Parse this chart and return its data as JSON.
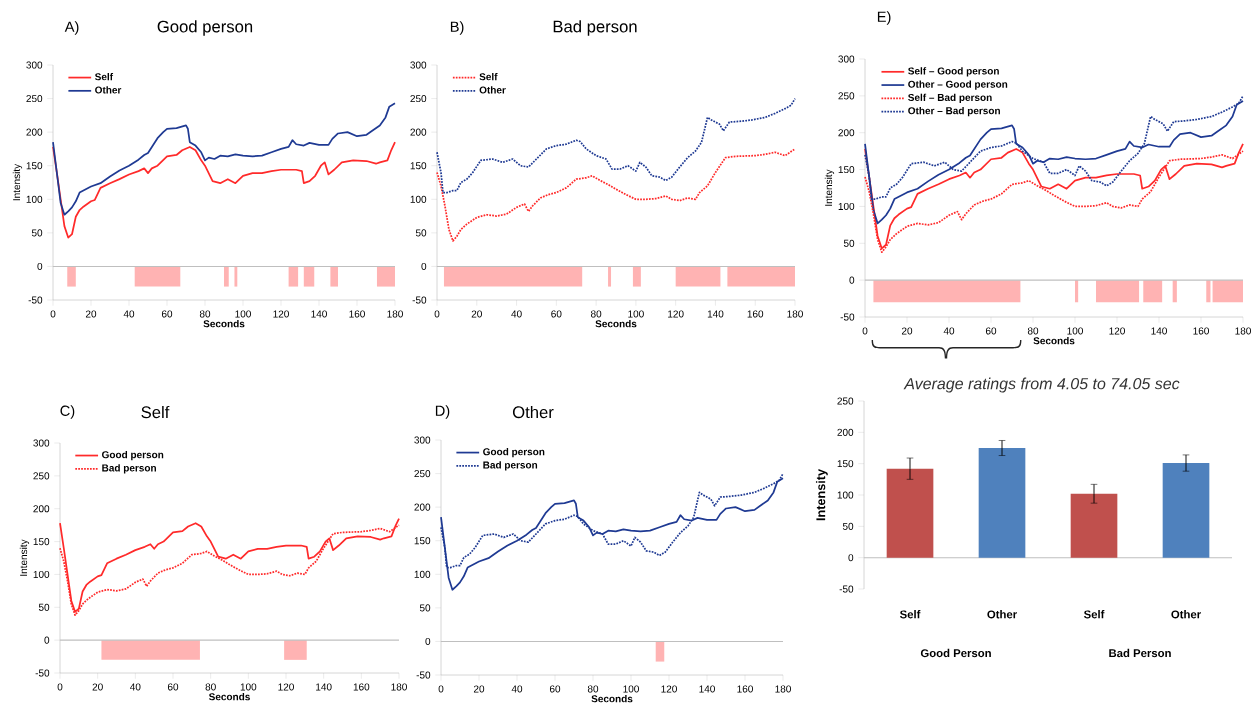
{
  "chart_data": [
    {
      "type": "line",
      "annotations": [
        "A)"
      ],
      "title": "Good person",
      "xlabel": "Seconds",
      "ylabel": "Intensity",
      "xlim": [
        0,
        180
      ],
      "ylim": [
        -50,
        300
      ],
      "xticks": [
        0,
        20,
        40,
        60,
        80,
        100,
        120,
        140,
        160,
        180
      ],
      "yticks": [
        -50,
        0,
        50,
        100,
        150,
        200,
        250,
        300
      ],
      "legend": "top left",
      "ref_lines": [
        {
          "axis": "y",
          "value": 0,
          "color": "#bfbfbf"
        }
      ],
      "bands": [
        {
          "axis": "x",
          "from": 7.5,
          "to": 12,
          "color": "#ffb3b3"
        },
        {
          "axis": "x",
          "from": 43,
          "to": 67,
          "color": "#ffb3b3"
        },
        {
          "axis": "x",
          "from": 90,
          "to": 92.5,
          "color": "#ffb3b3"
        },
        {
          "axis": "x",
          "from": 95.5,
          "to": 97,
          "color": "#ffb3b3"
        },
        {
          "axis": "x",
          "from": 124,
          "to": 129,
          "color": "#ffb3b3"
        },
        {
          "axis": "x",
          "from": 132,
          "to": 137.5,
          "color": "#ffb3b3"
        },
        {
          "axis": "x",
          "from": 146,
          "to": 150,
          "color": "#ffb3b3"
        },
        {
          "axis": "x",
          "from": 170.5,
          "to": 180,
          "color": "#ffb3b3"
        }
      ],
      "series": [
        {
          "name": "Self",
          "color": "#ff2a2a",
          "line_style": "solid",
          "x": [
            0,
            2,
            4,
            6,
            8,
            10,
            12,
            14,
            16,
            20,
            22,
            25,
            30,
            35,
            40,
            45,
            48,
            50,
            52,
            55,
            60,
            65,
            68,
            72,
            75,
            78,
            80,
            84,
            88,
            92,
            96,
            100,
            105,
            110,
            115,
            120,
            128,
            131,
            132,
            135,
            138,
            141,
            143,
            145,
            148,
            152,
            158,
            165,
            170,
            172,
            176,
            178,
            180
          ],
          "values": [
            178,
            140,
            100,
            60,
            43,
            48,
            74,
            84,
            89,
            97,
            99,
            117,
            124,
            130,
            137,
            142,
            146,
            139,
            146,
            150,
            164,
            166,
            173,
            178,
            173,
            158,
            150,
            127,
            124,
            130,
            124,
            135,
            139,
            139,
            142,
            144,
            144,
            142,
            124,
            127,
            135,
            150,
            155,
            137,
            144,
            155,
            158,
            157,
            153,
            155,
            158,
            173,
            185
          ]
        },
        {
          "name": "Other",
          "color": "#1f3a93",
          "line_style": "solid",
          "x": [
            0,
            2,
            4,
            6,
            8,
            10,
            12,
            14,
            20,
            25,
            30,
            35,
            40,
            45,
            48,
            50,
            55,
            58,
            60,
            65,
            70,
            71,
            72,
            75,
            78,
            80,
            82,
            85,
            88,
            92,
            96,
            100,
            105,
            110,
            115,
            120,
            124,
            126,
            128,
            132,
            135,
            140,
            145,
            147,
            150,
            155,
            160,
            165,
            168,
            172,
            175,
            177,
            180
          ],
          "values": [
            185,
            140,
            95,
            77,
            82,
            88,
            97,
            110,
            119,
            124,
            134,
            143,
            150,
            159,
            166,
            169,
            191,
            200,
            205,
            206,
            210,
            205,
            185,
            180,
            170,
            158,
            162,
            160,
            165,
            164,
            167,
            165,
            164,
            165,
            170,
            175,
            178,
            188,
            182,
            180,
            184,
            181,
            181,
            190,
            198,
            200,
            194,
            196,
            202,
            210,
            222,
            238,
            243
          ]
        }
      ]
    },
    {
      "type": "line",
      "annotations": [
        "B)"
      ],
      "title": "Bad person",
      "xlabel": "Seconds",
      "xlim": [
        0,
        180
      ],
      "ylim": [
        -50,
        300
      ],
      "xticks": [
        0,
        20,
        40,
        60,
        80,
        100,
        120,
        140,
        160,
        180
      ],
      "yticks": [
        -50,
        0,
        50,
        100,
        150,
        200,
        250,
        300
      ],
      "legend": "top left",
      "ref_lines": [
        {
          "axis": "y",
          "value": 0,
          "color": "#bfbfbf"
        }
      ],
      "bands": [
        {
          "axis": "x",
          "from": 3.5,
          "to": 73,
          "color": "#ffb3b3"
        },
        {
          "axis": "x",
          "from": 86,
          "to": 87.5,
          "color": "#ffb3b3"
        },
        {
          "axis": "x",
          "from": 98.5,
          "to": 102.5,
          "color": "#ffb3b3"
        },
        {
          "axis": "x",
          "from": 120,
          "to": 142.5,
          "color": "#ffb3b3"
        },
        {
          "axis": "x",
          "from": 146,
          "to": 180,
          "color": "#ffb3b3"
        }
      ],
      "series": [
        {
          "name": "Self",
          "color": "#ff2a2a",
          "line_style": "dotted",
          "x": [
            0,
            2,
            4,
            6,
            8,
            10,
            12,
            15,
            20,
            25,
            30,
            35,
            40,
            44,
            46,
            48,
            52,
            56,
            60,
            65,
            70,
            75,
            78,
            82,
            86,
            90,
            95,
            100,
            105,
            110,
            115,
            118,
            122,
            126,
            130,
            132,
            136,
            140,
            145,
            150,
            160,
            165,
            170,
            175,
            180
          ],
          "values": [
            140,
            120,
            90,
            55,
            38,
            45,
            55,
            63,
            73,
            77,
            75,
            78,
            88,
            93,
            82,
            90,
            102,
            107,
            110,
            117,
            130,
            132,
            135,
            128,
            122,
            115,
            107,
            100,
            100,
            101,
            105,
            100,
            98,
            102,
            100,
            110,
            120,
            140,
            162,
            164,
            165,
            167,
            170,
            165,
            175
          ]
        },
        {
          "name": "Other",
          "color": "#1f3a93",
          "line_style": "dotted",
          "x": [
            0,
            2,
            3,
            5,
            8,
            10,
            12,
            15,
            18,
            22,
            28,
            33,
            38,
            42,
            46,
            50,
            55,
            60,
            65,
            70,
            72,
            75,
            80,
            85,
            88,
            92,
            96,
            100,
            102,
            105,
            108,
            112,
            115,
            118,
            122,
            126,
            130,
            133,
            136,
            138,
            142,
            144,
            147,
            152,
            158,
            165,
            170,
            175,
            178,
            180
          ],
          "values": [
            170,
            140,
            110,
            110,
            113,
            113,
            125,
            130,
            140,
            158,
            160,
            155,
            160,
            150,
            148,
            160,
            175,
            180,
            182,
            188,
            186,
            175,
            165,
            160,
            145,
            145,
            150,
            142,
            155,
            148,
            135,
            133,
            128,
            133,
            148,
            162,
            172,
            185,
            222,
            218,
            212,
            202,
            215,
            216,
            218,
            222,
            228,
            235,
            240,
            250
          ]
        }
      ]
    },
    {
      "type": "line",
      "annotations": [
        "C)"
      ],
      "title": "Self",
      "xlabel": "Seconds",
      "ylabel": "Intensity",
      "xlim": [
        0,
        180
      ],
      "ylim": [
        -50,
        300
      ],
      "xticks": [
        0,
        20,
        40,
        60,
        80,
        100,
        120,
        140,
        160,
        180
      ],
      "yticks": [
        -50,
        0,
        50,
        100,
        150,
        200,
        250,
        300
      ],
      "legend": "top left",
      "ref_lines": [
        {
          "axis": "y",
          "value": 0,
          "color": "#bfbfbf"
        }
      ],
      "bands": [
        {
          "axis": "x",
          "from": 22,
          "to": 74.3,
          "color": "#ffb3b3"
        },
        {
          "axis": "x",
          "from": 119,
          "to": 131,
          "color": "#ffb3b3"
        }
      ],
      "series": [
        {
          "name": "Good person",
          "color": "#ff2a2a",
          "line_style": "solid",
          "x": [
            0,
            2,
            4,
            6,
            8,
            10,
            12,
            14,
            16,
            20,
            22,
            25,
            30,
            35,
            40,
            45,
            48,
            50,
            52,
            55,
            60,
            65,
            68,
            72,
            75,
            78,
            80,
            84,
            88,
            92,
            96,
            100,
            105,
            110,
            115,
            120,
            128,
            131,
            132,
            135,
            138,
            141,
            143,
            145,
            148,
            152,
            158,
            165,
            170,
            172,
            176,
            178,
            180
          ],
          "values": [
            178,
            140,
            100,
            60,
            43,
            48,
            74,
            84,
            89,
            97,
            99,
            117,
            124,
            130,
            137,
            142,
            146,
            139,
            146,
            150,
            164,
            166,
            173,
            178,
            173,
            158,
            150,
            127,
            124,
            130,
            124,
            135,
            139,
            139,
            142,
            144,
            144,
            142,
            124,
            127,
            135,
            150,
            155,
            137,
            144,
            155,
            158,
            157,
            153,
            155,
            158,
            173,
            185
          ]
        },
        {
          "name": "Bad person",
          "color": "#ff2a2a",
          "line_style": "dotted",
          "x": [
            0,
            2,
            4,
            6,
            8,
            10,
            12,
            15,
            20,
            25,
            30,
            35,
            40,
            44,
            46,
            48,
            52,
            56,
            60,
            65,
            70,
            75,
            78,
            82,
            86,
            90,
            95,
            100,
            105,
            110,
            115,
            118,
            122,
            126,
            130,
            132,
            136,
            140,
            145,
            150,
            160,
            165,
            170,
            175,
            180
          ],
          "values": [
            140,
            120,
            90,
            55,
            38,
            45,
            55,
            63,
            73,
            77,
            75,
            78,
            88,
            93,
            82,
            90,
            102,
            107,
            110,
            117,
            130,
            132,
            135,
            128,
            122,
            115,
            107,
            100,
            100,
            101,
            105,
            100,
            98,
            102,
            100,
            110,
            120,
            140,
            162,
            164,
            165,
            167,
            170,
            165,
            175
          ]
        }
      ]
    },
    {
      "type": "line",
      "annotations": [
        "D)"
      ],
      "title": "Other",
      "xlabel": "Seconds",
      "xlim": [
        0,
        180
      ],
      "ylim": [
        -50,
        300
      ],
      "xticks": [
        0,
        20,
        40,
        60,
        80,
        100,
        120,
        140,
        160,
        180
      ],
      "yticks": [
        -50,
        0,
        50,
        100,
        150,
        200,
        250,
        300
      ],
      "legend": "top left",
      "ref_lines": [
        {
          "axis": "y",
          "value": 0,
          "color": "#bfbfbf"
        }
      ],
      "bands": [
        {
          "axis": "x",
          "from": 113,
          "to": 117.5,
          "color": "#ffb3b3"
        }
      ],
      "series": [
        {
          "name": "Good person",
          "color": "#1f3a93",
          "line_style": "solid",
          "x": [
            0,
            2,
            4,
            6,
            8,
            10,
            12,
            14,
            20,
            25,
            30,
            35,
            40,
            45,
            48,
            50,
            55,
            58,
            60,
            65,
            70,
            71,
            72,
            75,
            78,
            80,
            82,
            85,
            88,
            92,
            96,
            100,
            105,
            110,
            115,
            120,
            124,
            126,
            128,
            132,
            135,
            140,
            145,
            147,
            150,
            155,
            160,
            165,
            168,
            172,
            175,
            177,
            180
          ],
          "values": [
            185,
            140,
            95,
            77,
            82,
            88,
            97,
            110,
            119,
            124,
            134,
            143,
            150,
            159,
            166,
            169,
            191,
            200,
            205,
            206,
            210,
            205,
            185,
            180,
            170,
            158,
            162,
            160,
            165,
            164,
            167,
            165,
            164,
            165,
            170,
            175,
            178,
            188,
            182,
            180,
            184,
            181,
            181,
            190,
            198,
            200,
            194,
            196,
            202,
            210,
            222,
            238,
            243
          ]
        },
        {
          "name": "Bad person",
          "color": "#1f3a93",
          "line_style": "dotted",
          "x": [
            0,
            2,
            3,
            5,
            8,
            10,
            12,
            15,
            18,
            22,
            28,
            33,
            38,
            42,
            46,
            50,
            55,
            60,
            65,
            70,
            72,
            75,
            80,
            85,
            88,
            92,
            96,
            100,
            102,
            105,
            108,
            112,
            115,
            118,
            122,
            126,
            130,
            133,
            136,
            138,
            142,
            144,
            147,
            152,
            158,
            165,
            170,
            175,
            178,
            180
          ],
          "values": [
            170,
            140,
            110,
            110,
            113,
            113,
            125,
            130,
            140,
            158,
            160,
            155,
            160,
            150,
            148,
            160,
            175,
            180,
            182,
            188,
            186,
            175,
            165,
            160,
            145,
            145,
            150,
            142,
            155,
            148,
            135,
            133,
            128,
            133,
            148,
            162,
            172,
            185,
            222,
            218,
            212,
            202,
            215,
            216,
            218,
            222,
            228,
            235,
            240,
            250
          ]
        }
      ]
    },
    {
      "type": "line",
      "annotations": [
        "E)"
      ],
      "xlabel": "Seconds",
      "ylabel": "Intensity",
      "xlim": [
        0,
        180
      ],
      "ylim": [
        -50,
        300
      ],
      "xticks": [
        0,
        20,
        40,
        60,
        80,
        100,
        120,
        140,
        160,
        180
      ],
      "yticks": [
        -50,
        0,
        50,
        100,
        150,
        200,
        250,
        300
      ],
      "legend": "top left",
      "ref_lines": [
        {
          "axis": "y",
          "value": 0,
          "color": "#bfbfbf"
        }
      ],
      "bands": [
        {
          "axis": "x",
          "from": 4,
          "to": 74,
          "color": "#ffb3b3"
        },
        {
          "axis": "x",
          "from": 100,
          "to": 101.5,
          "color": "#ffb3b3"
        },
        {
          "axis": "x",
          "from": 110,
          "to": 130.5,
          "color": "#ffb3b3"
        },
        {
          "axis": "x",
          "from": 132.5,
          "to": 141.5,
          "color": "#ffb3b3"
        },
        {
          "axis": "x",
          "from": 146.5,
          "to": 148.5,
          "color": "#ffb3b3"
        },
        {
          "axis": "x",
          "from": 162.5,
          "to": 164.5,
          "color": "#ffb3b3"
        },
        {
          "axis": "x",
          "from": 165.5,
          "to": 180,
          "color": "#ffb3b3"
        }
      ],
      "series": [
        {
          "name": "Self – Good person",
          "color": "#ff2a2a",
          "line_style": "solid",
          "x": [
            0,
            2,
            4,
            6,
            8,
            10,
            12,
            14,
            16,
            20,
            22,
            25,
            30,
            35,
            40,
            45,
            48,
            50,
            52,
            55,
            60,
            65,
            68,
            72,
            75,
            78,
            80,
            84,
            88,
            92,
            96,
            100,
            105,
            110,
            115,
            120,
            128,
            131,
            132,
            135,
            138,
            141,
            143,
            145,
            148,
            152,
            158,
            165,
            170,
            172,
            176,
            178,
            180
          ],
          "values": [
            178,
            140,
            100,
            60,
            43,
            48,
            74,
            84,
            89,
            97,
            99,
            117,
            124,
            130,
            137,
            142,
            146,
            139,
            146,
            150,
            164,
            166,
            173,
            178,
            173,
            158,
            150,
            127,
            124,
            130,
            124,
            135,
            139,
            139,
            142,
            144,
            144,
            142,
            124,
            127,
            135,
            150,
            155,
            137,
            144,
            155,
            158,
            157,
            153,
            155,
            158,
            173,
            185
          ]
        },
        {
          "name": "Other – Good person",
          "color": "#1f3a93",
          "line_style": "solid",
          "x": [
            0,
            2,
            4,
            6,
            8,
            10,
            12,
            14,
            20,
            25,
            30,
            35,
            40,
            45,
            48,
            50,
            55,
            58,
            60,
            65,
            70,
            71,
            72,
            75,
            78,
            80,
            82,
            85,
            88,
            92,
            96,
            100,
            105,
            110,
            115,
            120,
            124,
            126,
            128,
            132,
            135,
            140,
            145,
            147,
            150,
            155,
            160,
            165,
            168,
            172,
            175,
            177,
            180
          ],
          "values": [
            185,
            140,
            95,
            77,
            82,
            88,
            97,
            110,
            119,
            124,
            134,
            143,
            150,
            159,
            166,
            169,
            191,
            200,
            205,
            206,
            210,
            205,
            185,
            180,
            170,
            158,
            162,
            160,
            165,
            164,
            167,
            165,
            164,
            165,
            170,
            175,
            178,
            188,
            182,
            180,
            184,
            181,
            181,
            190,
            198,
            200,
            194,
            196,
            202,
            210,
            222,
            238,
            243
          ]
        },
        {
          "name": "Self – Bad person",
          "color": "#ff2a2a",
          "line_style": "dotted",
          "x": [
            0,
            2,
            4,
            6,
            8,
            10,
            12,
            15,
            20,
            25,
            30,
            35,
            40,
            44,
            46,
            48,
            52,
            56,
            60,
            65,
            70,
            75,
            78,
            82,
            86,
            90,
            95,
            100,
            105,
            110,
            115,
            118,
            122,
            126,
            130,
            132,
            136,
            140,
            145,
            150,
            160,
            165,
            170,
            175,
            180
          ],
          "values": [
            140,
            120,
            90,
            55,
            38,
            45,
            55,
            63,
            73,
            77,
            75,
            78,
            88,
            93,
            82,
            90,
            102,
            107,
            110,
            117,
            130,
            132,
            135,
            128,
            122,
            115,
            107,
            100,
            100,
            101,
            105,
            100,
            98,
            102,
            100,
            110,
            120,
            140,
            162,
            164,
            165,
            167,
            170,
            165,
            175
          ]
        },
        {
          "name": "Other – Bad person",
          "color": "#1f3a93",
          "line_style": "dotted",
          "x": [
            0,
            2,
            3,
            5,
            8,
            10,
            12,
            15,
            18,
            22,
            28,
            33,
            38,
            42,
            46,
            50,
            55,
            60,
            65,
            70,
            72,
            75,
            80,
            85,
            88,
            92,
            96,
            100,
            102,
            105,
            108,
            112,
            115,
            118,
            122,
            126,
            130,
            133,
            136,
            138,
            142,
            144,
            147,
            152,
            158,
            165,
            170,
            175,
            178,
            180
          ],
          "values": [
            170,
            140,
            110,
            110,
            113,
            113,
            125,
            130,
            140,
            158,
            160,
            155,
            160,
            150,
            148,
            160,
            175,
            180,
            182,
            188,
            186,
            175,
            165,
            160,
            145,
            145,
            150,
            142,
            155,
            148,
            135,
            133,
            128,
            133,
            148,
            162,
            172,
            185,
            222,
            218,
            212,
            202,
            215,
            216,
            218,
            222,
            228,
            235,
            240,
            250
          ]
        }
      ]
    },
    {
      "type": "bar",
      "title": "Average ratings from 4.05 to 74.05 sec",
      "ylabel": "Intensity",
      "categories": [
        "Self",
        "Other",
        "Self",
        "Other"
      ],
      "values": [
        142,
        175,
        102,
        151
      ],
      "errors": [
        17,
        12,
        15,
        13
      ],
      "colors": [
        "#c0504d",
        "#4f81bd",
        "#c0504d",
        "#4f81bd"
      ],
      "ylim": [
        -50,
        250
      ],
      "yticks": [
        -50,
        0,
        50,
        100,
        150,
        200,
        250
      ],
      "ref_lines": [
        {
          "axis": "y",
          "value": 0,
          "color": "#bfbfbf"
        }
      ],
      "annotations": [
        "Good Person",
        "Bad Person"
      ]
    }
  ]
}
